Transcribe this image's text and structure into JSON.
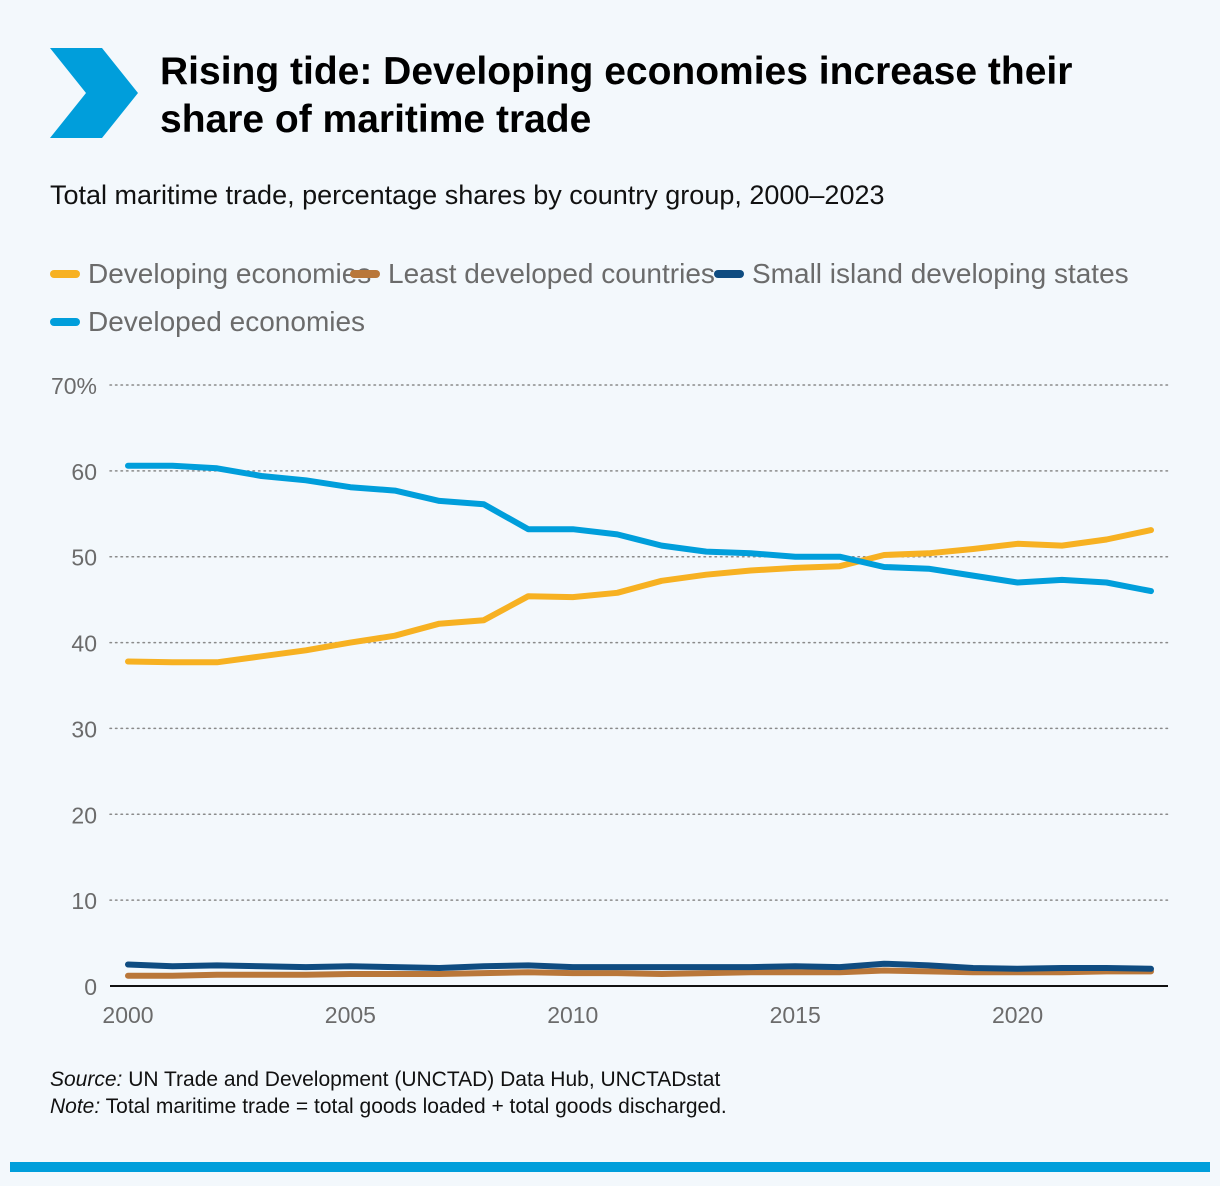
{
  "header": {
    "title": "Rising tide: Developing economies increase their share of maritime trade",
    "subtitle": "Total maritime trade, percentage shares by country group, 2000–2023"
  },
  "colors": {
    "accent": "#009edb",
    "developing": "#f7b122",
    "ldc": "#b9773a",
    "sids": "#0f4c81",
    "developed": "#009edb"
  },
  "legend": [
    {
      "label": "Developing economies",
      "color": "#f7b122",
      "icon": "legend-swatch"
    },
    {
      "label": "Least developed countries",
      "color": "#b9773a",
      "icon": "legend-swatch"
    },
    {
      "label": "Small island developing states",
      "color": "#0f4c81",
      "icon": "legend-swatch"
    },
    {
      "label": "Developed economies",
      "color": "#009edb",
      "icon": "legend-swatch"
    }
  ],
  "chart_data": {
    "type": "line",
    "title": "Total maritime trade, percentage shares by country group, 2000–2023",
    "xlabel": "",
    "ylabel": "",
    "x": [
      2000,
      2001,
      2002,
      2003,
      2004,
      2005,
      2006,
      2007,
      2008,
      2009,
      2010,
      2011,
      2012,
      2013,
      2014,
      2015,
      2016,
      2017,
      2018,
      2019,
      2020,
      2021,
      2022,
      2023
    ],
    "xticks": [
      2000,
      2005,
      2010,
      2015,
      2020
    ],
    "xtick_labels": [
      "2000",
      "2005",
      "2010",
      "2015",
      "2020"
    ],
    "yticks": [
      0,
      10,
      20,
      30,
      40,
      50,
      60,
      70
    ],
    "ytick_labels": [
      "0",
      "10",
      "20",
      "30",
      "40",
      "50",
      "60",
      "70%"
    ],
    "ylim": [
      0,
      70
    ],
    "xlim": [
      2000,
      2023
    ],
    "grid": "horizontal dotted",
    "legend_position": "top",
    "series": [
      {
        "name": "Developing economies",
        "color": "#f7b122",
        "values": [
          37.8,
          37.7,
          37.7,
          38.4,
          39.1,
          40.0,
          40.8,
          42.2,
          42.6,
          45.4,
          45.3,
          45.8,
          47.2,
          47.9,
          48.4,
          48.7,
          48.9,
          50.2,
          50.4,
          50.9,
          51.5,
          51.3,
          52.0,
          53.1
        ]
      },
      {
        "name": "Least developed countries",
        "color": "#b9773a",
        "values": [
          1.2,
          1.2,
          1.3,
          1.3,
          1.3,
          1.4,
          1.4,
          1.4,
          1.5,
          1.6,
          1.5,
          1.5,
          1.4,
          1.5,
          1.6,
          1.6,
          1.6,
          1.8,
          1.7,
          1.6,
          1.6,
          1.6,
          1.7,
          1.7
        ]
      },
      {
        "name": "Small island developing states",
        "color": "#0f4c81",
        "values": [
          2.5,
          2.3,
          2.4,
          2.3,
          2.2,
          2.3,
          2.2,
          2.1,
          2.3,
          2.4,
          2.2,
          2.2,
          2.2,
          2.2,
          2.2,
          2.3,
          2.2,
          2.6,
          2.4,
          2.1,
          2.0,
          2.1,
          2.1,
          2.0
        ]
      },
      {
        "name": "Developed economies",
        "color": "#009edb",
        "values": [
          60.6,
          60.6,
          60.3,
          59.4,
          58.9,
          58.1,
          57.7,
          56.5,
          56.1,
          53.2,
          53.2,
          52.6,
          51.3,
          50.6,
          50.4,
          50.0,
          50.0,
          48.8,
          48.6,
          47.8,
          47.0,
          47.3,
          47.0,
          46.0
        ]
      }
    ]
  },
  "notes": {
    "source_label": "Source:",
    "source_text": " UN Trade and Development (UNCTAD) Data Hub, UNCTADstat",
    "note_label": "Note:",
    "note_text": " Total maritime trade = total goods loaded + total goods discharged."
  }
}
